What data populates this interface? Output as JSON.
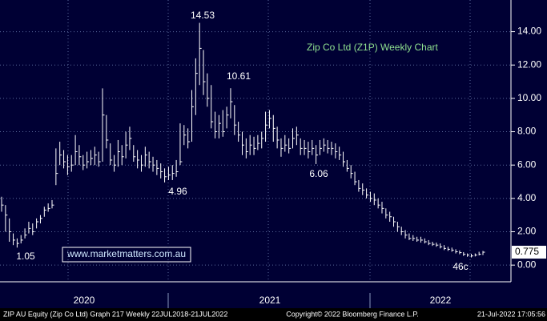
{
  "chart_data": {
    "type": "ohlc",
    "title": "Zip Co Ltd (Z1P) Weekly Chart",
    "series": [
      {
        "color": "#ffffff",
        "high": [
          4.1,
          3.6,
          2.8,
          1.9,
          1.6,
          1.8,
          2.2,
          2.6,
          2.5,
          2.8,
          3.0,
          3.5,
          3.7,
          3.9,
          7.0,
          7.4,
          6.9,
          6.6,
          6.6,
          7.8,
          7.2,
          6.6,
          6.8,
          6.9,
          7.1,
          6.8,
          10.6,
          9.0,
          7.3,
          6.6,
          7.5,
          7.2,
          8.0,
          8.3,
          7.2,
          6.9,
          6.6,
          7.1,
          6.8,
          6.5,
          6.3,
          6.1,
          5.8,
          5.9,
          6.0,
          6.3,
          8.5,
          8.4,
          8.2,
          10.5,
          12.4,
          14.53,
          12.9,
          11.5,
          10.8,
          9.2,
          9.0,
          9.3,
          9.5,
          10.61,
          9.6,
          8.6,
          8.0,
          7.6,
          7.8,
          7.7,
          7.8,
          8.0,
          9.2,
          9.3,
          9.0,
          8.3,
          7.6,
          7.8,
          7.6,
          8.2,
          8.3,
          7.6,
          7.5,
          7.4,
          7.5,
          7.2,
          7.5,
          7.6,
          7.5,
          7.4,
          7.3,
          7.1,
          6.8,
          6.3,
          6.0,
          5.6,
          5.1,
          4.9,
          4.6,
          4.4,
          4.3,
          4.0,
          3.8,
          3.4,
          3.2,
          2.9,
          2.6,
          2.3,
          2.1,
          1.9,
          1.8,
          1.7,
          1.7,
          1.6,
          1.5,
          1.4,
          1.35,
          1.3,
          1.2,
          1.1,
          1.05,
          0.95,
          0.88,
          0.78,
          0.7,
          0.68,
          0.7,
          0.8,
          0.85
        ],
        "low": [
          3.2,
          2.0,
          1.4,
          1.2,
          1.05,
          1.3,
          1.6,
          1.9,
          1.8,
          2.2,
          2.5,
          2.9,
          3.2,
          3.4,
          4.8,
          6.0,
          5.8,
          5.4,
          5.6,
          6.0,
          6.0,
          5.7,
          5.8,
          6.0,
          6.0,
          5.9,
          6.2,
          7.0,
          6.0,
          5.6,
          5.9,
          6.0,
          6.4,
          6.9,
          6.2,
          5.8,
          5.6,
          5.9,
          5.8,
          5.6,
          5.4,
          5.2,
          4.96,
          5.1,
          5.1,
          5.3,
          6.0,
          7.2,
          7.0,
          7.4,
          9.0,
          10.8,
          10.2,
          9.5,
          8.2,
          7.6,
          7.6,
          7.7,
          8.2,
          8.8,
          7.8,
          7.4,
          6.6,
          6.4,
          6.6,
          6.6,
          6.9,
          7.0,
          7.4,
          8.2,
          7.4,
          7.0,
          6.5,
          6.8,
          6.7,
          7.0,
          7.2,
          6.6,
          6.6,
          6.4,
          6.6,
          6.06,
          6.6,
          6.8,
          6.7,
          6.6,
          6.4,
          6.3,
          5.9,
          5.6,
          5.2,
          4.8,
          4.4,
          4.2,
          4.0,
          3.8,
          3.6,
          3.4,
          3.1,
          2.8,
          2.6,
          2.3,
          2.0,
          1.8,
          1.6,
          1.5,
          1.45,
          1.4,
          1.35,
          1.3,
          1.2,
          1.15,
          1.1,
          1.0,
          0.9,
          0.85,
          0.8,
          0.7,
          0.65,
          0.55,
          0.5,
          0.46,
          0.52,
          0.58,
          0.6
        ],
        "close": [
          3.6,
          3.0,
          2.0,
          1.5,
          1.3,
          1.5,
          1.8,
          2.2,
          2.0,
          2.6,
          2.8,
          3.3,
          3.4,
          3.6,
          5.5,
          6.6,
          6.2,
          5.9,
          6.0,
          6.8,
          6.5,
          6.0,
          6.2,
          6.4,
          6.6,
          6.2,
          9.0,
          7.5,
          6.3,
          6.0,
          6.8,
          6.5,
          7.2,
          7.6,
          6.5,
          6.3,
          6.0,
          6.6,
          6.2,
          6.0,
          5.8,
          5.6,
          5.3,
          5.4,
          5.5,
          5.6,
          6.2,
          7.8,
          7.4,
          9.5,
          11.5,
          13.0,
          11.0,
          10.0,
          8.6,
          8.0,
          8.5,
          8.0,
          9.0,
          9.8,
          8.4,
          7.8,
          7.2,
          6.8,
          7.2,
          7.0,
          7.3,
          7.6,
          8.4,
          8.8,
          8.2,
          7.5,
          7.0,
          7.2,
          7.0,
          7.6,
          7.8,
          7.0,
          7.0,
          6.8,
          7.0,
          6.6,
          7.0,
          7.2,
          7.0,
          7.0,
          6.8,
          6.6,
          6.2,
          5.8,
          5.5,
          5.0,
          4.6,
          4.5,
          4.2,
          4.0,
          3.9,
          3.6,
          3.4,
          3.0,
          2.9,
          2.6,
          2.3,
          2.0,
          1.8,
          1.6,
          1.6,
          1.5,
          1.5,
          1.4,
          1.3,
          1.25,
          1.2,
          1.1,
          1.0,
          0.95,
          0.9,
          0.8,
          0.75,
          0.65,
          0.6,
          0.55,
          0.6,
          0.65,
          0.775
        ]
      }
    ],
    "price_tag": "0.775",
    "ylim": [
      -1.0,
      15.9
    ],
    "yticks": [
      {
        "value": 0,
        "label": "0.00"
      },
      {
        "value": 2,
        "label": "2.00"
      },
      {
        "value": 4,
        "label": "4.00"
      },
      {
        "value": 6,
        "label": "6.00"
      },
      {
        "value": 8,
        "label": "8.00"
      },
      {
        "value": 10,
        "label": "10.00"
      },
      {
        "value": 12,
        "label": "12.00"
      },
      {
        "value": 14,
        "label": "14.00"
      }
    ],
    "year_labels": [
      "2020",
      "2021",
      "2022"
    ],
    "annotations": [
      "14.53",
      "10.61",
      "4.96",
      "6.06",
      "1.05",
      "46c"
    ],
    "watermark": "www.marketmatters.com.au",
    "footer": {
      "left": "ZIP AU Equity (Zip Co Ltd) Graph 217  Weekly 22JUL2018-21JUL2022",
      "center": "Copyright© 2022 Bloomberg Finance L.P.",
      "right": "21-Jul-2022 17:05:56"
    },
    "grid": true
  }
}
